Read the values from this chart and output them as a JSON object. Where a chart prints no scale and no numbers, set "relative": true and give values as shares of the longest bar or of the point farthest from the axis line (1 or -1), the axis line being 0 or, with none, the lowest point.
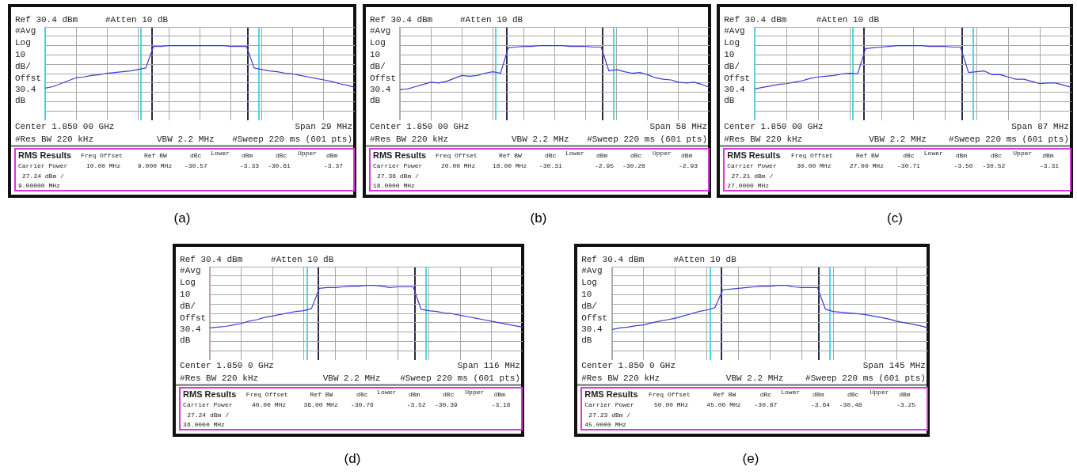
{
  "chart_data": [
    {
      "type": "line",
      "title": "(a)",
      "relative": true,
      "grid": true,
      "color": "#3c3cd6",
      "categories": [
        null,
        null,
        null,
        null,
        null,
        null,
        null,
        null,
        null,
        null,
        null,
        null,
        null,
        null,
        null,
        null,
        null,
        null,
        null,
        null,
        null,
        null,
        null,
        null,
        null,
        null,
        null,
        null,
        null,
        null,
        null,
        null,
        null,
        null,
        null,
        null,
        null,
        null,
        null,
        null,
        null
      ],
      "values": [
        0.43,
        0.45,
        0.49,
        0.53,
        0.57,
        0.58,
        0.6,
        0.61,
        0.63,
        0.64,
        0.65,
        0.66,
        0.68,
        0.7,
        0.99,
        0.99,
        1,
        1,
        1,
        1,
        1,
        1,
        1,
        1,
        0.99,
        0.99,
        0.99,
        0.7,
        0.68,
        0.66,
        0.65,
        0.63,
        0.62,
        0.6,
        0.58,
        0.56,
        0.54,
        0.52,
        0.49,
        0.47,
        0.44
      ],
      "annotations": [
        "Ref 30.4 dBm",
        "#Atten 10 dB",
        "#Avg",
        "Log",
        "10",
        "dB/",
        "Offst",
        "30.4",
        "dB",
        "Center 1.850 00 GHz",
        "Span 29 MHz",
        "#Res BW 220 kHz",
        "VBW 2.2 MHz",
        "#Sweep 220 ms (601 pts)",
        "RMS Results",
        "Freq Offset",
        "Ref BW",
        "dBc",
        "Lower",
        "dBm",
        "dBc",
        "Upper",
        "dBm",
        "Carrier Power",
        "10.00 MHz",
        "9.000 MHz",
        "-30.57",
        "-3.33",
        "-30.61",
        "-3.37",
        "27.24 dBm /",
        "9.00000 MHz"
      ]
    },
    {
      "type": "line",
      "title": "(b)",
      "relative": true,
      "grid": true,
      "color": "#3c3cd6",
      "categories": [
        null,
        null,
        null,
        null,
        null,
        null,
        null,
        null,
        null,
        null,
        null,
        null,
        null,
        null,
        null,
        null,
        null,
        null,
        null,
        null,
        null,
        null,
        null,
        null,
        null,
        null,
        null,
        null,
        null,
        null,
        null,
        null,
        null,
        null,
        null,
        null,
        null,
        null,
        null,
        null,
        null
      ],
      "values": [
        0.41,
        0.42,
        0.45,
        0.48,
        0.51,
        0.5,
        0.52,
        0.56,
        0.6,
        0.59,
        0.6,
        0.63,
        0.65,
        0.63,
        0.97,
        0.98,
        0.99,
        0.99,
        1,
        1,
        1,
        1,
        0.99,
        0.99,
        0.99,
        0.98,
        0.98,
        0.66,
        0.68,
        0.65,
        0.63,
        0.64,
        0.61,
        0.57,
        0.55,
        0.54,
        0.51,
        0.5,
        0.51,
        0.48,
        0.44
      ],
      "annotations": [
        "Ref 30.4 dBm",
        "#Atten 10 dB",
        "#Avg",
        "Log",
        "10",
        "dB/",
        "Offst",
        "30.4",
        "dB",
        "Center 1.850 00 GHz",
        "Span 58 MHz",
        "#Res BW 220 kHz",
        "VBW 2.2 MHz",
        "#Sweep 220 ms (601 pts)",
        "RMS Results",
        "Freq Offset",
        "Ref BW",
        "dBc",
        "Lower",
        "dBm",
        "dBc",
        "Upper",
        "dBm",
        "Carrier Power",
        "20.00 MHz",
        "18.00 MHz",
        "-30.31",
        "-2.95",
        "-30.28",
        "-2.93",
        "27.36 dBm /",
        "18.0000 MHz"
      ]
    },
    {
      "type": "line",
      "title": "(c)",
      "relative": true,
      "grid": true,
      "color": "#3c3cd6",
      "categories": [
        null,
        null,
        null,
        null,
        null,
        null,
        null,
        null,
        null,
        null,
        null,
        null,
        null,
        null,
        null,
        null,
        null,
        null,
        null,
        null,
        null,
        null,
        null,
        null,
        null,
        null,
        null,
        null,
        null,
        null,
        null,
        null,
        null,
        null,
        null,
        null,
        null,
        null,
        null,
        null,
        null
      ],
      "values": [
        0.42,
        0.44,
        0.46,
        0.48,
        0.49,
        0.51,
        0.53,
        0.56,
        0.58,
        0.59,
        0.6,
        0.62,
        0.63,
        0.62,
        0.96,
        0.97,
        0.98,
        0.99,
        1,
        1,
        1,
        1,
        0.99,
        0.99,
        0.99,
        0.98,
        0.98,
        0.64,
        0.65,
        0.66,
        0.61,
        0.61,
        0.58,
        0.55,
        0.55,
        0.52,
        0.49,
        0.5,
        0.5,
        0.47,
        0.44
      ],
      "annotations": [
        "Ref 30.4 dBm",
        "#Atten 10 dB",
        "#Avg",
        "Log",
        "10",
        "dB/",
        "Offst",
        "30.4",
        "dB",
        "Center 1.850 00 GHz",
        "Span 87 MHz",
        "#Res BW 220 kHz",
        "VBW 2.2 MHz",
        "#Sweep 220 ms (601 pts)",
        "RMS Results",
        "Freq Offset",
        "Ref BW",
        "dBc",
        "Lower",
        "dBm",
        "dBc",
        "Upper",
        "dBm",
        "Carrier Power",
        "30.00 MHz",
        "27.00 MHz",
        "-30.71",
        "-3.50",
        "-30.52",
        "-3.31",
        "27.21 dBm /",
        "27.0000 MHz"
      ]
    },
    {
      "type": "line",
      "title": "(d)",
      "relative": true,
      "grid": true,
      "color": "#3c3cd6",
      "categories": [
        null,
        null,
        null,
        null,
        null,
        null,
        null,
        null,
        null,
        null,
        null,
        null,
        null,
        null,
        null,
        null,
        null,
        null,
        null,
        null,
        null,
        null,
        null,
        null,
        null,
        null,
        null,
        null,
        null,
        null,
        null,
        null,
        null,
        null,
        null,
        null,
        null,
        null,
        null,
        null,
        null
      ],
      "values": [
        0.43,
        0.44,
        0.45,
        0.47,
        0.49,
        0.52,
        0.54,
        0.57,
        0.59,
        0.61,
        0.63,
        0.65,
        0.66,
        0.69,
        0.96,
        0.97,
        0.97,
        0.98,
        0.99,
        0.99,
        1,
        1,
        0.99,
        0.97,
        0.98,
        0.98,
        0.98,
        0.68,
        0.66,
        0.65,
        0.63,
        0.62,
        0.6,
        0.58,
        0.56,
        0.54,
        0.52,
        0.5,
        0.48,
        0.46,
        0.44
      ],
      "annotations": [
        "Ref 30.4 dBm",
        "#Atten 10 dB",
        "#Avg",
        "Log",
        "10",
        "dB/",
        "Offst",
        "30.4",
        "dB",
        "Center 1.850 0 GHz",
        "Span 116 MHz",
        "#Res BW 220 kHz",
        "VBW 2.2 MHz",
        "#Sweep 220 ms (601 pts)",
        "RMS Results",
        "Freq Offset",
        "Ref BW",
        "dBc",
        "Lower",
        "dBm",
        "dBc",
        "Upper",
        "dBm",
        "Carrier Power",
        "40.00 MHz",
        "36.00 MHz",
        "-30.76",
        "-3.52",
        "-30.39",
        "-3.16",
        "27.24 dBm /",
        "36.0000 MHz"
      ]
    },
    {
      "type": "line",
      "title": "(e)",
      "relative": true,
      "grid": true,
      "color": "#3c3cd6",
      "categories": [
        null,
        null,
        null,
        null,
        null,
        null,
        null,
        null,
        null,
        null,
        null,
        null,
        null,
        null,
        null,
        null,
        null,
        null,
        null,
        null,
        null,
        null,
        null,
        null,
        null,
        null,
        null,
        null,
        null,
        null,
        null,
        null,
        null,
        null,
        null,
        null,
        null,
        null,
        null,
        null,
        null
      ],
      "values": [
        0.41,
        0.43,
        0.44,
        0.46,
        0.47,
        0.5,
        0.52,
        0.54,
        0.56,
        0.59,
        0.62,
        0.65,
        0.67,
        0.7,
        0.94,
        0.95,
        0.96,
        0.97,
        0.98,
        0.99,
        0.99,
        1,
        1,
        0.98,
        0.97,
        0.97,
        0.97,
        0.68,
        0.65,
        0.64,
        0.63,
        0.62,
        0.61,
        0.59,
        0.57,
        0.55,
        0.52,
        0.5,
        0.48,
        0.46,
        0.43
      ],
      "annotations": [
        "Ref 30.4 dBm",
        "#Atten 10 dB",
        "#Avg",
        "Log",
        "10",
        "dB/",
        "Offst",
        "30.4",
        "dB",
        "Center 1.850 0 GHz",
        "Span 145 MHz",
        "#Res BW 220 kHz",
        "VBW 2.2 MHz",
        "#Sweep 220 ms (601 pts)",
        "RMS Results",
        "Freq Offset",
        "Ref BW",
        "dBc",
        "Lower",
        "dBm",
        "dBc",
        "Upper",
        "dBm",
        "Carrier Power",
        "50.00 MHz",
        "45.00 MHz",
        "-30.87",
        "-3.64",
        "-30.48",
        "-3.25",
        "27.23 dBm /",
        "45.0000 MHz"
      ]
    }
  ]
}
